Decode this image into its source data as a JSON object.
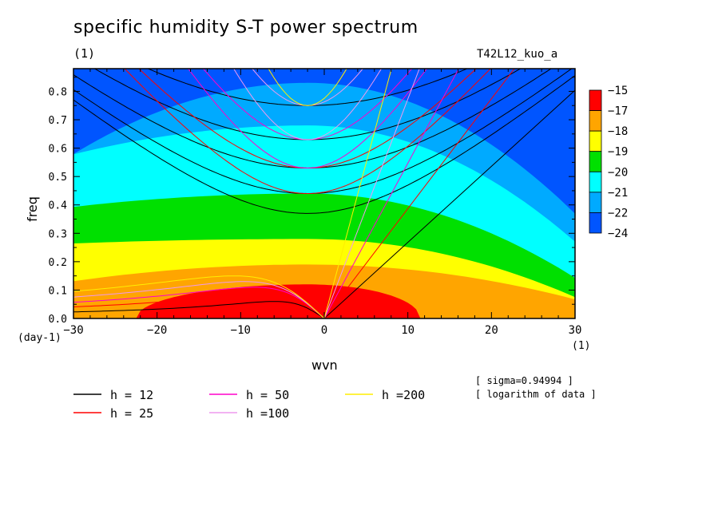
{
  "header": {
    "title": "specific humidity S-T power spectrum",
    "unit_left": "(1)",
    "experiment": "T42L12_kuo_a"
  },
  "notes": {
    "sigma": "[ sigma=0.94994 ]",
    "log": "[ logarithm of data ]"
  },
  "chart_data": {
    "type": "heatmap",
    "title": "specific humidity S-T power spectrum",
    "xlabel": "wvn",
    "ylabel": "freq",
    "xunit": "(1)",
    "yunit": "(day-1)",
    "xlim": [
      -30,
      30
    ],
    "ylim": [
      0,
      0.88
    ],
    "x_ticks": [
      -30,
      -20,
      -10,
      0,
      10,
      20,
      30
    ],
    "y_ticks": [
      0.0,
      0.1,
      0.2,
      0.3,
      0.4,
      0.5,
      0.6,
      0.7,
      0.8
    ],
    "y_tick_labels": [
      "0.0",
      "0.1",
      "0.2",
      "0.3",
      "0.4",
      "0.5",
      "0.6",
      "0.7",
      "0.8"
    ],
    "colorbar": {
      "labels": [
        "-15",
        "-17",
        "-18",
        "-19",
        "-20",
        "-21",
        "-22",
        "-24"
      ],
      "colors": [
        "#ff0000",
        "#ffa500",
        "#ffff00",
        "#00e000",
        "#00ffff",
        "#00aaff",
        "#0055ff"
      ]
    },
    "contour_bands": [
      {
        "range": "> -17",
        "color": "#ff0000",
        "center_freq": 0.0,
        "top_freq_at_k0": 0.12
      },
      {
        "range": "-18 to -17",
        "color": "#ffa500",
        "top_freq_at_k0": 0.19
      },
      {
        "range": "-19 to -18",
        "color": "#ffff00",
        "top_freq_at_k0": 0.28
      },
      {
        "range": "-20 to -19",
        "color": "#00e000",
        "top_freq_at_k0": 0.44
      },
      {
        "range": "-21 to -20",
        "color": "#00ffff",
        "top_freq_at_k0": 0.68
      },
      {
        "range": "-22 to -21",
        "color": "#00aaff",
        "top_freq_at_k0": 0.83
      },
      {
        "range": "< -22",
        "color": "#0055ff"
      }
    ],
    "dispersion_curves": [
      {
        "name": "h = 12",
        "color": "#000000",
        "kelvin_slope": 0.0268,
        "min_freq": [
          0.37,
          0.44,
          0.53,
          0.63,
          0.75
        ],
        "rossby_peak": [
          0.06
        ]
      },
      {
        "name": "h = 25",
        "color": "#ff0000",
        "kelvin_slope": 0.0387,
        "min_freq": [
          0.44,
          0.53
        ],
        "rossby_peak": [
          0.09
        ]
      },
      {
        "name": "h = 50",
        "color": "#ff00cc",
        "kelvin_slope": 0.0547,
        "min_freq": [
          0.53,
          0.63
        ],
        "rossby_peak": [
          0.11
        ]
      },
      {
        "name": "h =100",
        "color": "#ee99ee",
        "kelvin_slope": 0.0773,
        "min_freq": [
          0.63,
          0.75
        ],
        "rossby_peak": [
          0.13
        ]
      },
      {
        "name": "h =200",
        "color": "#ffee00",
        "kelvin_slope": 0.1094,
        "min_freq": [
          0.75
        ],
        "rossby_peak": [
          0.15
        ]
      }
    ]
  }
}
